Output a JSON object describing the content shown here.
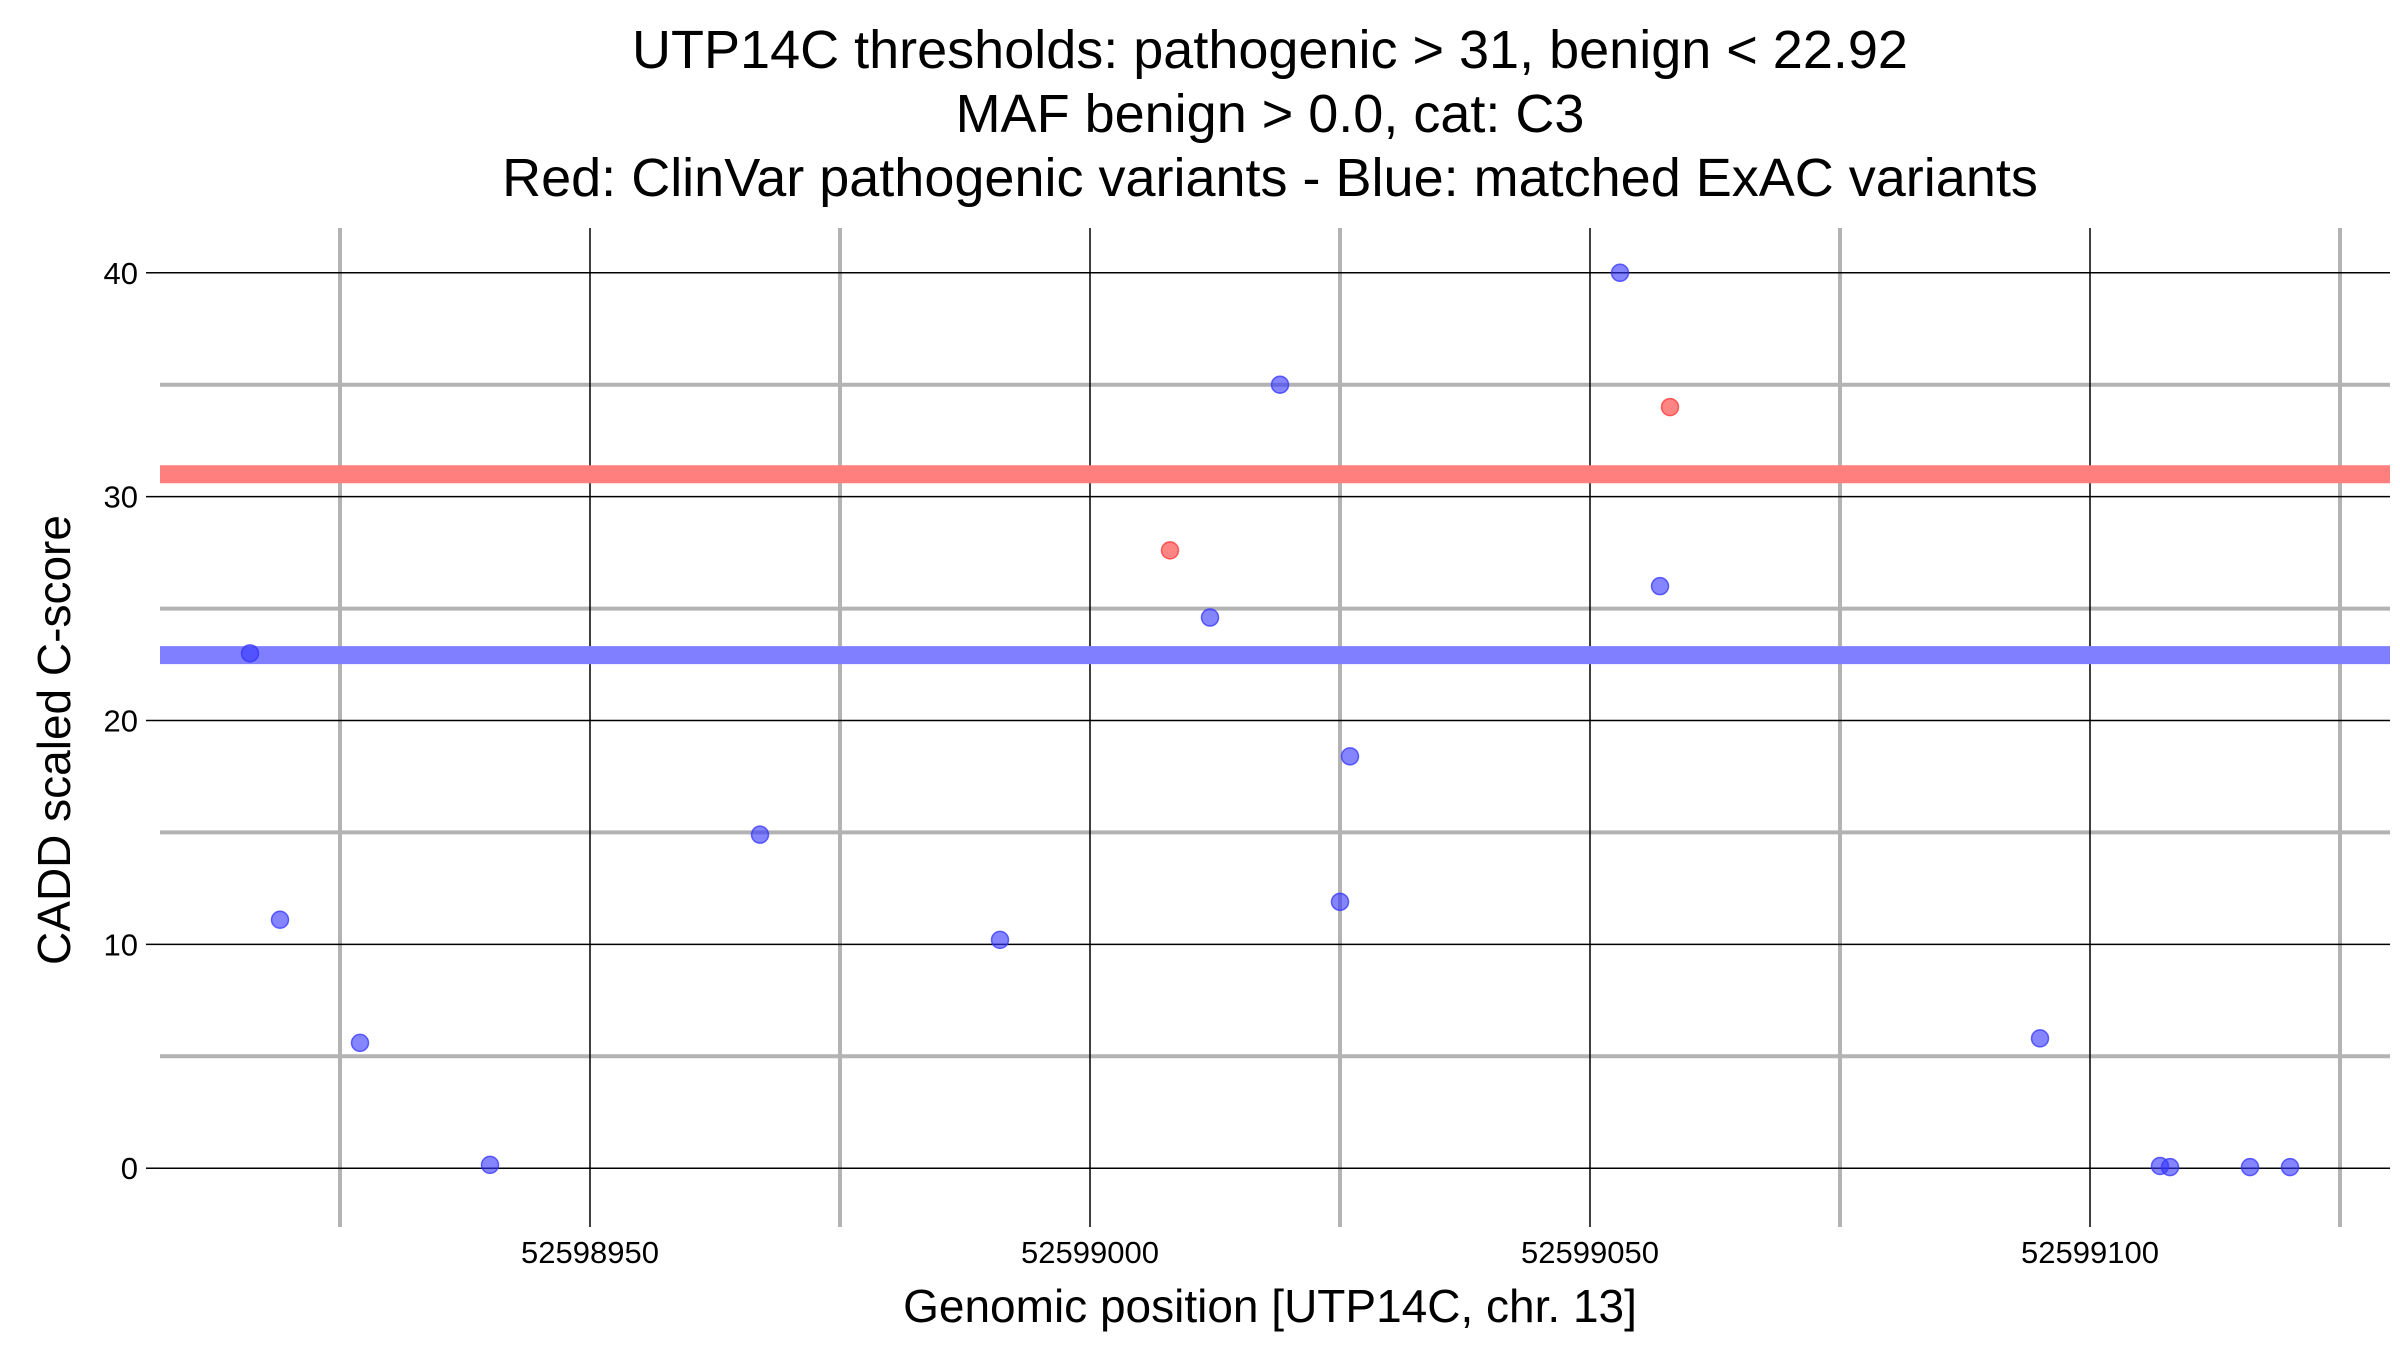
{
  "chart_data": {
    "type": "scatter",
    "title_lines": [
      "UTP14C thresholds: pathogenic > 31, benign < 22.92",
      "MAF benign > 0.0, cat: C3",
      "Red: ClinVar pathogenic variants - Blue: matched ExAC variants"
    ],
    "xlabel": "Genomic position [UTP14C, chr. 13]",
    "ylabel": "CADD scaled C-score",
    "xlim": [
      52598907,
      52599130
    ],
    "ylim": [
      -2,
      42
    ],
    "x_major_ticks": [
      52598950,
      52599000,
      52599050,
      52599100
    ],
    "x_minor_ticks": [
      52598925,
      52598975,
      52599025,
      52599075,
      52599125
    ],
    "y_major_ticks": [
      0,
      10,
      20,
      30,
      40
    ],
    "y_minor_ticks": [
      5,
      15,
      25,
      35
    ],
    "x_tick_labels": [
      "52598950",
      "52599000",
      "52599050",
      "52599100"
    ],
    "y_tick_labels": [
      "0",
      "10",
      "20",
      "30",
      "40"
    ],
    "thresholds": [
      {
        "name": "pathogenic",
        "value": 31,
        "color": "#ff7f7f"
      },
      {
        "name": "benign",
        "value": 22.92,
        "color": "#7f7fff"
      }
    ],
    "series": [
      {
        "name": "ClinVar pathogenic variants",
        "color": "#ff3333",
        "points": [
          {
            "x": 52599008,
            "y": 27.6
          },
          {
            "x": 52599058,
            "y": 34.0
          }
        ]
      },
      {
        "name": "matched ExAC variants",
        "color": "#3333ff",
        "points": [
          {
            "x": 52598916,
            "y": 23.0
          },
          {
            "x": 52598919,
            "y": 11.1
          },
          {
            "x": 52598927,
            "y": 5.6
          },
          {
            "x": 52598940,
            "y": 0.15
          },
          {
            "x": 52598967,
            "y": 14.9
          },
          {
            "x": 52598991,
            "y": 10.2
          },
          {
            "x": 52599012,
            "y": 24.6
          },
          {
            "x": 52599019,
            "y": 35.0
          },
          {
            "x": 52599025,
            "y": 11.9
          },
          {
            "x": 52599026,
            "y": 18.4
          },
          {
            "x": 52599053,
            "y": 40.0
          },
          {
            "x": 52599057,
            "y": 26.0
          },
          {
            "x": 52599095,
            "y": 5.8
          },
          {
            "x": 52599107,
            "y": 0.1
          },
          {
            "x": 52599108,
            "y": 0.05
          },
          {
            "x": 52599116,
            "y": 0.05
          },
          {
            "x": 52599120,
            "y": 0.05
          }
        ]
      }
    ]
  }
}
